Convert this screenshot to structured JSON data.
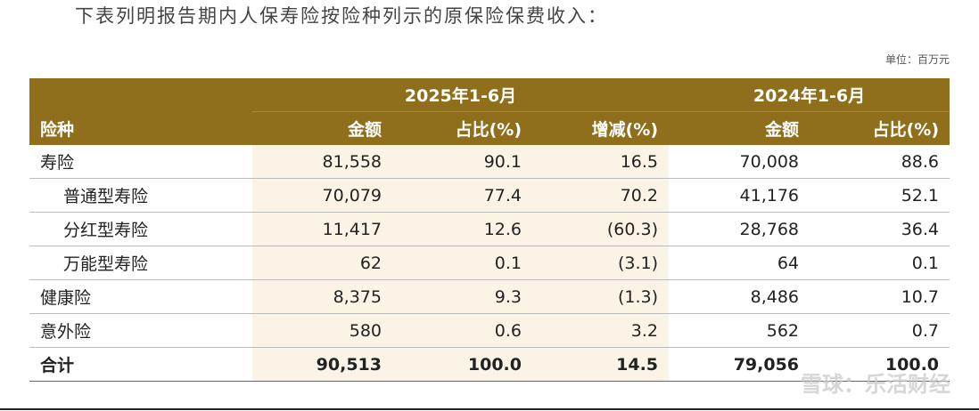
{
  "intro": "下表列明报告期内人保寿险按险种列示的原保险保费收入：",
  "unit": "单位：百万元",
  "table": {
    "groups": [
      "2025年1-6月",
      "2024年1-6月"
    ],
    "columns": [
      "险种",
      "金额",
      "占比(%)",
      "增减(%)",
      "金额",
      "占比(%)"
    ],
    "rows": [
      {
        "label": "寿险",
        "cells": [
          "81,558",
          "90.1",
          "16.5",
          "70,008",
          "88.6"
        ]
      },
      {
        "label": "普通型寿险",
        "cells": [
          "70,079",
          "77.4",
          "70.2",
          "41,176",
          "52.1"
        ]
      },
      {
        "label": "分红型寿险",
        "cells": [
          "11,417",
          "12.6",
          "(60.3)",
          "28,768",
          "36.4"
        ]
      },
      {
        "label": "万能型寿险",
        "cells": [
          "62",
          "0.1",
          "(3.1)",
          "64",
          "0.1"
        ]
      },
      {
        "label": "健康险",
        "cells": [
          "8,375",
          "9.3",
          "(1.3)",
          "8,486",
          "10.7"
        ]
      },
      {
        "label": "意外险",
        "cells": [
          "580",
          "0.6",
          "3.2",
          "562",
          "0.7"
        ]
      },
      {
        "label": "合计",
        "cells": [
          "90,513",
          "100.0",
          "14.5",
          "79,056",
          "100.0"
        ]
      }
    ]
  },
  "watermark": "雪球：乐活财经"
}
